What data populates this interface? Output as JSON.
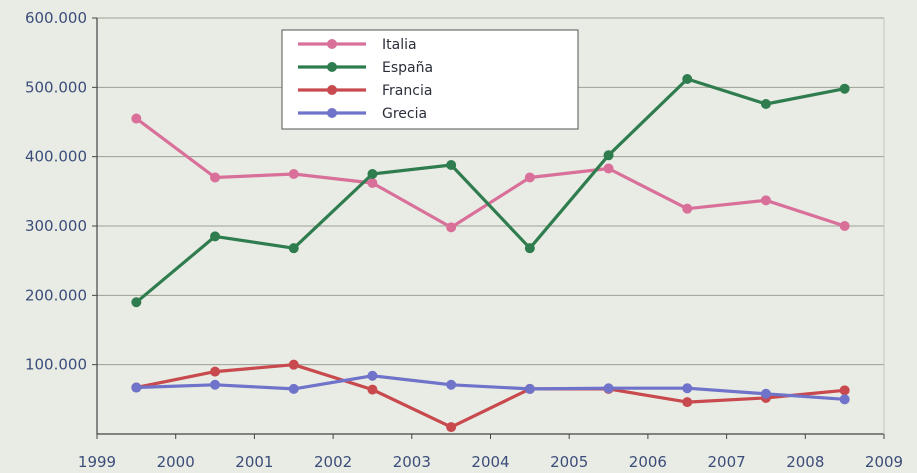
{
  "chart_data": {
    "type": "line",
    "title": "",
    "xlabel": "",
    "ylabel": "",
    "x": [
      "1999-2000",
      "2000-2001",
      "2001-2002",
      "2002-2003",
      "2003-2004",
      "2004-2005",
      "2005-2006",
      "2006-2007",
      "2007-2008",
      "2008-2009"
    ],
    "x_ticks": [
      "1999",
      "2000",
      "2001",
      "2002",
      "2003",
      "2004",
      "2005",
      "2006",
      "2007",
      "2008",
      "2009"
    ],
    "y_ticks": [
      "600.000",
      "500.000",
      "400.000",
      "300.000",
      "200.000",
      "100.000"
    ],
    "ylim": [
      0,
      600000
    ],
    "grid": true,
    "legend_position": "top-center",
    "series": [
      {
        "name": "Italia",
        "color": "#d9709a",
        "values": [
          455000,
          370000,
          375000,
          362000,
          298000,
          370000,
          383000,
          325000,
          337000,
          300000
        ]
      },
      {
        "name": "España",
        "color": "#2f7d4f",
        "values": [
          190000,
          285000,
          268000,
          375000,
          388000,
          268000,
          402000,
          512000,
          476000,
          498000
        ]
      },
      {
        "name": "Francia",
        "color": "#c84a4e",
        "values": [
          67000,
          90000,
          100000,
          64000,
          10000,
          65000,
          65000,
          46000,
          52000,
          63000
        ]
      },
      {
        "name": "Grecia",
        "color": "#6f73c9",
        "values": [
          67000,
          71000,
          65000,
          84000,
          71000,
          65000,
          66000,
          66000,
          58000,
          50000
        ]
      }
    ]
  }
}
